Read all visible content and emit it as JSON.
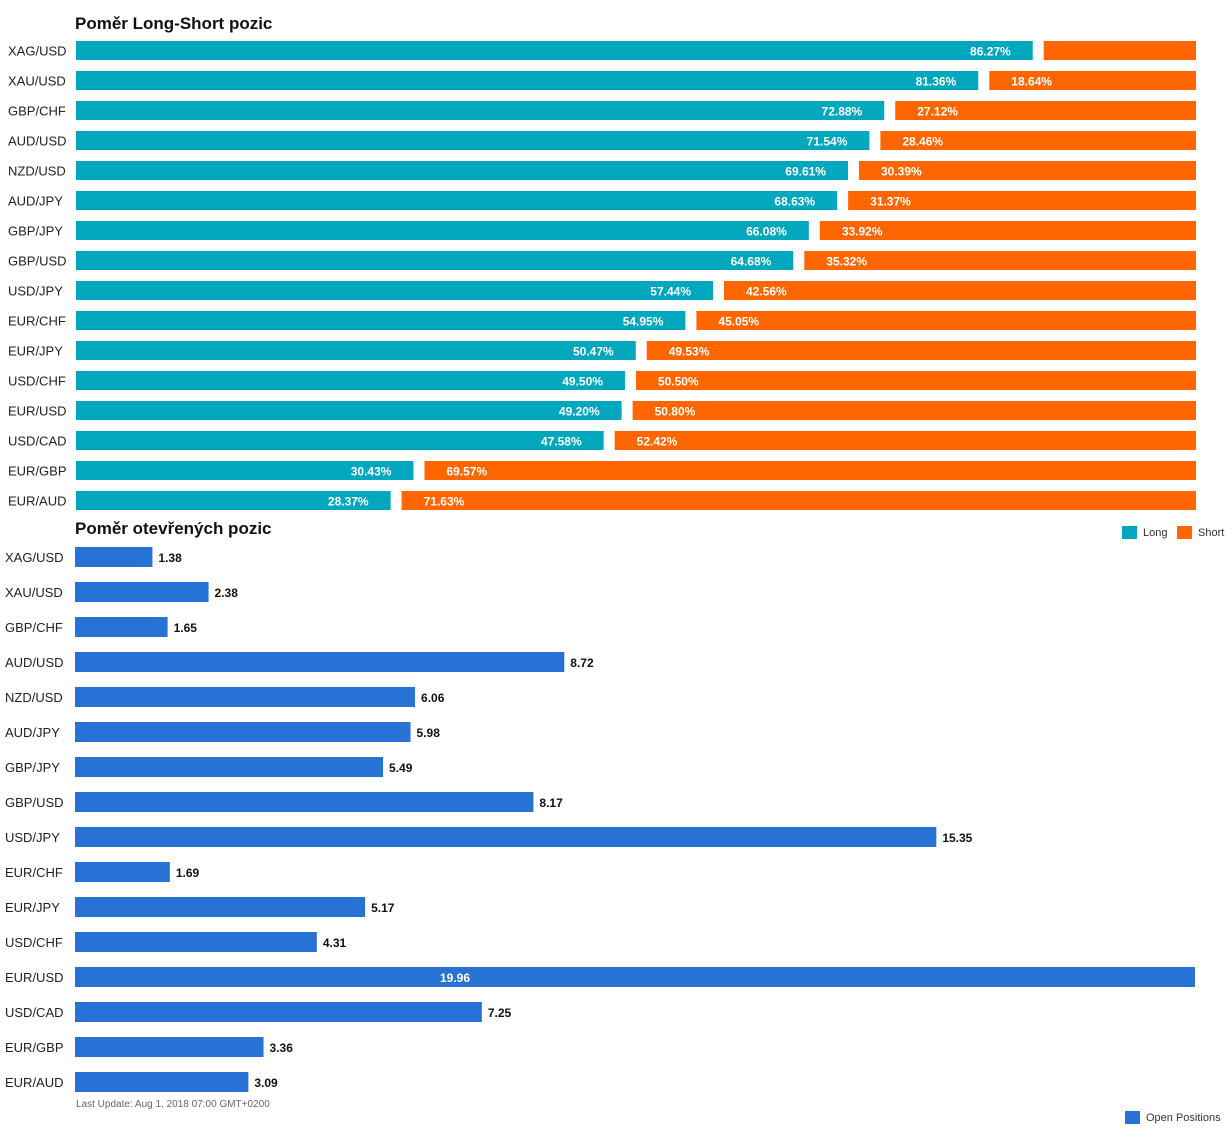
{
  "chart_data": [
    {
      "type": "bar",
      "orientation": "horizontal",
      "stacked": true,
      "title": "Poměr Long-Short pozic",
      "categories": [
        "XAG/USD",
        "XAU/USD",
        "GBP/CHF",
        "AUD/USD",
        "NZD/USD",
        "AUD/JPY",
        "GBP/JPY",
        "GBP/USD",
        "USD/JPY",
        "EUR/CHF",
        "EUR/JPY",
        "USD/CHF",
        "EUR/USD",
        "USD/CAD",
        "EUR/GBP",
        "EUR/AUD"
      ],
      "series": [
        {
          "name": "Long",
          "color": "#00a7bd",
          "values": [
            86.27,
            81.36,
            72.88,
            71.54,
            69.61,
            68.63,
            66.08,
            64.68,
            57.44,
            54.95,
            50.47,
            49.5,
            49.2,
            47.58,
            30.43,
            28.37
          ],
          "labels": [
            "86.27%",
            "81.36%",
            "72.88%",
            "71.54%",
            "69.61%",
            "68.63%",
            "66.08%",
            "64.68%",
            "57.44%",
            "54.95%",
            "50.47%",
            "49.50%",
            "49.20%",
            "47.58%",
            "30.43%",
            "28.37%"
          ]
        },
        {
          "name": "Short",
          "color": "#ff6600",
          "values": [
            13.73,
            18.64,
            27.12,
            28.46,
            30.39,
            31.37,
            33.92,
            35.32,
            42.56,
            45.05,
            49.53,
            50.5,
            50.8,
            52.42,
            69.57,
            71.63
          ],
          "labels": [
            "",
            "18.64%",
            "27.12%",
            "28.46%",
            "30.39%",
            "31.37%",
            "33.92%",
            "35.32%",
            "42.56%",
            "45.05%",
            "49.53%",
            "50.50%",
            "50.80%",
            "52.42%",
            "69.57%",
            "71.63%"
          ]
        }
      ],
      "xlim": [
        0,
        100
      ],
      "legend": "bottom-right"
    },
    {
      "type": "bar",
      "orientation": "horizontal",
      "title": "Poměr otevřených pozic",
      "categories": [
        "XAG/USD",
        "XAU/USD",
        "GBP/CHF",
        "AUD/USD",
        "NZD/USD",
        "AUD/JPY",
        "GBP/JPY",
        "GBP/USD",
        "USD/JPY",
        "EUR/CHF",
        "EUR/JPY",
        "USD/CHF",
        "EUR/USD",
        "USD/CAD",
        "EUR/GBP",
        "EUR/AUD"
      ],
      "series": [
        {
          "name": "Open Positions",
          "color": "#2872d6",
          "values": [
            1.38,
            2.38,
            1.65,
            8.72,
            6.06,
            5.98,
            5.49,
            8.17,
            15.35,
            1.69,
            5.17,
            4.31,
            19.96,
            7.25,
            3.36,
            3.09
          ],
          "labels": [
            "1.38",
            "2.38",
            "1.65",
            "8.72",
            "6.06",
            "5.98",
            "5.49",
            "8.17",
            "15.35",
            "1.69",
            "5.17",
            "4.31",
            "19.96",
            "7.25",
            "3.36",
            "3.09"
          ]
        }
      ],
      "xlim": [
        0,
        19.96
      ],
      "legend": "bottom-right"
    }
  ],
  "footer": {
    "last_update": "Last Update: Aug 1, 2018 07:00 GMT+0200"
  }
}
